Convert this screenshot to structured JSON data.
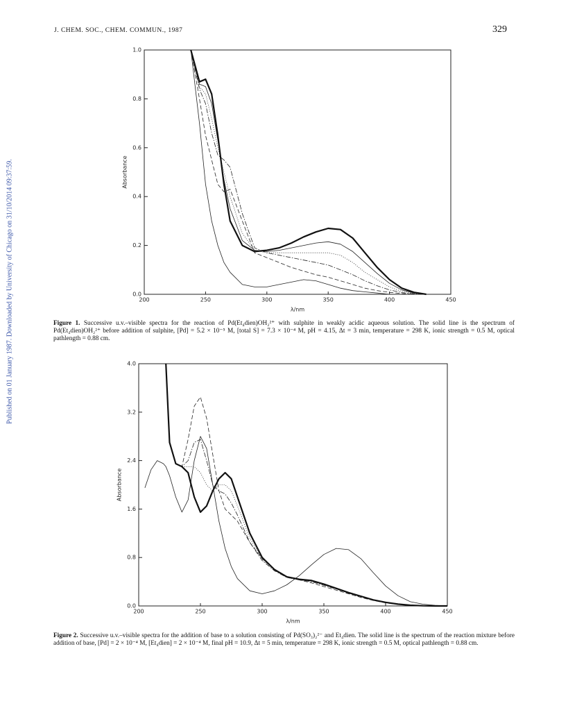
{
  "header": {
    "journal": "J. CHEM. SOC., CHEM. COMMUN., 1987",
    "page": "329"
  },
  "sidebar": "Published on 01 January 1987. Downloaded by University of Chicago on 31/10/2014 09:37:59.",
  "chart_data": [
    {
      "type": "line",
      "ylabel": "Absorbance",
      "xlabel": "λ/nm",
      "xlim": [
        200,
        450
      ],
      "ylim": [
        0,
        1.0
      ],
      "xticks": [
        200,
        250,
        300,
        350,
        400,
        450
      ],
      "yticks": [
        {
          "value": 0,
          "label": "0.0"
        },
        0.2,
        0.4,
        0.6,
        0.8,
        {
          "value": 1.0,
          "label": "1.0"
        }
      ],
      "x": [
        238,
        245,
        250,
        255,
        260,
        265,
        270,
        280,
        290,
        300,
        310,
        320,
        330,
        340,
        350,
        360,
        370,
        380,
        390,
        400,
        410,
        420,
        430
      ],
      "series": [
        {
          "color": "#222",
          "dash": "solid",
          "width": 0.8,
          "values": [
            1.0,
            0.7,
            0.45,
            0.3,
            0.2,
            0.13,
            0.09,
            0.04,
            0.03,
            0.03,
            0.04,
            0.05,
            0.06,
            0.055,
            0.04,
            0.025,
            0.015,
            0.01,
            0.005,
            0,
            0,
            0,
            0
          ]
        },
        {
          "color": "#222",
          "dash": "dashed",
          "width": 0.8,
          "values": [
            1.0,
            0.8,
            0.65,
            0.55,
            0.45,
            0.42,
            0.43,
            0.3,
            0.17,
            0.15,
            0.13,
            0.11,
            0.095,
            0.08,
            0.07,
            0.055,
            0.04,
            0.025,
            0.015,
            0.008,
            0.003,
            0,
            0
          ]
        },
        {
          "color": "#222",
          "dash": "dashdot",
          "width": 0.8,
          "values": [
            1.0,
            0.84,
            0.78,
            0.66,
            0.57,
            0.55,
            0.52,
            0.33,
            0.19,
            0.17,
            0.16,
            0.15,
            0.14,
            0.13,
            0.12,
            0.1,
            0.08,
            0.055,
            0.035,
            0.018,
            0.007,
            0.002,
            0
          ]
        },
        {
          "color": "#222",
          "dash": "dotted",
          "width": 0.8,
          "values": [
            1.0,
            0.85,
            0.82,
            0.72,
            0.6,
            0.5,
            0.4,
            0.25,
            0.18,
            0.17,
            0.17,
            0.17,
            0.17,
            0.17,
            0.17,
            0.16,
            0.13,
            0.09,
            0.06,
            0.03,
            0.012,
            0.004,
            0
          ]
        },
        {
          "color": "#222",
          "dash": "solid",
          "width": 0.8,
          "values": [
            1.0,
            0.86,
            0.85,
            0.78,
            0.63,
            0.47,
            0.35,
            0.22,
            0.18,
            0.175,
            0.18,
            0.19,
            0.2,
            0.21,
            0.215,
            0.205,
            0.175,
            0.13,
            0.085,
            0.045,
            0.018,
            0.005,
            0
          ]
        },
        {
          "color": "#111",
          "dash": "solid",
          "width": 2.2,
          "values": [
            1.0,
            0.87,
            0.88,
            0.82,
            0.65,
            0.45,
            0.3,
            0.2,
            0.175,
            0.18,
            0.19,
            0.21,
            0.235,
            0.255,
            0.27,
            0.265,
            0.23,
            0.17,
            0.11,
            0.06,
            0.025,
            0.008,
            0
          ]
        }
      ]
    },
    {
      "type": "line",
      "ylabel": "Absorbance",
      "xlabel": "λ/nm",
      "xlim": [
        200,
        450
      ],
      "ylim": [
        0,
        4.0
      ],
      "xticks": [
        200,
        250,
        300,
        350,
        400,
        450
      ],
      "yticks": [
        {
          "value": 0,
          "label": "0.0"
        },
        0.8,
        1.6,
        2.4,
        3.2,
        {
          "value": 4.0,
          "label": "4.0"
        }
      ],
      "x": [
        205,
        210,
        215,
        220,
        222,
        225,
        230,
        235,
        240,
        245,
        250,
        255,
        260,
        265,
        270,
        275,
        280,
        290,
        300,
        310,
        320,
        330,
        340,
        350,
        360,
        370,
        380,
        390,
        400,
        410,
        420,
        430,
        440,
        450
      ],
      "series": [
        {
          "color": "#222",
          "dash": "solid",
          "width": 0.8,
          "values": [
            1.95,
            2.25,
            2.4,
            2.35,
            2.3,
            2.15,
            1.8,
            1.55,
            1.75,
            2.4,
            2.8,
            2.6,
            2.0,
            1.4,
            0.95,
            0.65,
            0.45,
            0.25,
            0.2,
            0.25,
            0.35,
            0.5,
            0.68,
            0.85,
            0.95,
            0.93,
            0.78,
            0.55,
            0.33,
            0.17,
            0.07,
            0.03,
            0.01,
            0
          ]
        },
        {
          "color": "#222",
          "dash": "dashed",
          "width": 0.8,
          "values": [
            null,
            null,
            null,
            null,
            4.0,
            2.7,
            2.35,
            2.3,
            2.75,
            3.3,
            3.45,
            3.1,
            2.5,
            1.9,
            1.6,
            1.5,
            1.4,
            1.05,
            0.78,
            0.6,
            0.48,
            0.43,
            0.38,
            0.32,
            0.26,
            0.2,
            0.14,
            0.09,
            0.05,
            0.025,
            0.01,
            0,
            0,
            0
          ]
        },
        {
          "color": "#222",
          "dash": "dashdot",
          "width": 0.8,
          "values": [
            null,
            null,
            null,
            null,
            4.0,
            2.7,
            2.35,
            2.3,
            2.4,
            2.7,
            2.75,
            2.4,
            2.0,
            1.9,
            1.85,
            1.7,
            1.5,
            1.05,
            0.75,
            0.58,
            0.47,
            0.43,
            0.4,
            0.34,
            0.28,
            0.21,
            0.15,
            0.1,
            0.06,
            0.03,
            0.01,
            0.003,
            0,
            0
          ]
        },
        {
          "color": "#222",
          "dash": "dotted",
          "width": 0.8,
          "values": [
            null,
            null,
            null,
            null,
            4.0,
            2.7,
            2.35,
            2.3,
            2.3,
            2.3,
            2.2,
            2.0,
            1.9,
            2.0,
            2.0,
            1.9,
            1.65,
            1.12,
            0.77,
            0.59,
            0.47,
            0.43,
            0.41,
            0.35,
            0.285,
            0.215,
            0.155,
            0.1,
            0.06,
            0.03,
            0.011,
            0.003,
            0,
            0
          ]
        },
        {
          "color": "#111",
          "dash": "solid",
          "width": 2.2,
          "values": [
            null,
            null,
            null,
            null,
            4.0,
            2.7,
            2.35,
            2.3,
            2.2,
            1.8,
            1.55,
            1.65,
            1.9,
            2.1,
            2.2,
            2.1,
            1.8,
            1.2,
            0.8,
            0.6,
            0.48,
            0.44,
            0.42,
            0.36,
            0.29,
            0.22,
            0.16,
            0.1,
            0.06,
            0.03,
            0.012,
            0.004,
            0,
            0
          ]
        }
      ]
    }
  ],
  "captions": [
    {
      "label": "Figure 1.",
      "text": "Successive u.v.–visible spectra for the reaction of Pd(Et₄dien)OH₂²⁺ with sulphite in weakly acidic aqueous solution. The solid line is the spectrum of Pd(Et₄dien)OH₂²⁺ before addition of sulphite, [Pd] = 5.2 × 10⁻⁵ M, [total S] = 7.3 × 10⁻⁴ M, pH = 4.15, Δt = 3 min, temperature = 298 K, ionic strength = 0.5 M, optical pathlength = 0.88 cm."
    },
    {
      "label": "Figure 2.",
      "text": "Successive u.v.–visible spectra for the addition of base to a solution consisting of Pd(SO₃)₂²⁻ and Et₄dien. The solid line is the spectrum of the reaction mixture before addition of base, [Pd] = 2 × 10⁻⁴ M, [Et₄dien] = 2 × 10⁻⁴ M, final pH = 10.9, Δt = 5 min, temperature = 298 K, ionic strength = 0.5 M, optical pathlength = 0.88 cm."
    }
  ]
}
